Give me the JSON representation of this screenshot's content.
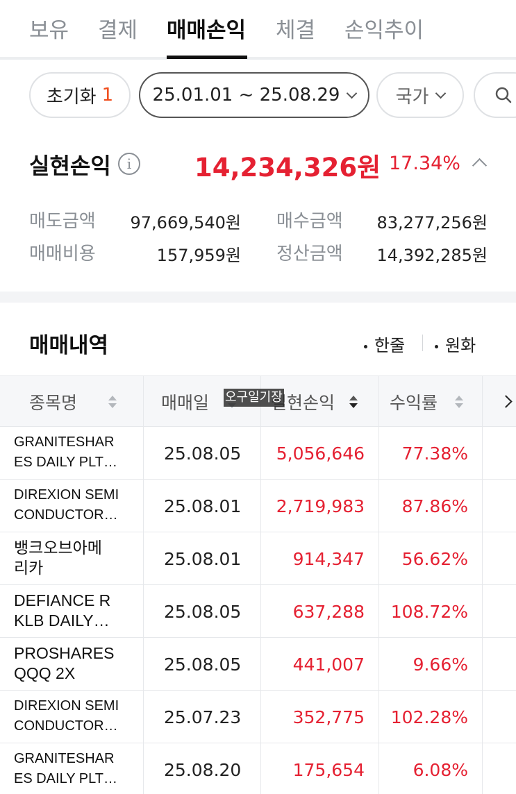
{
  "tabs": [
    "보유",
    "결제",
    "매매손익",
    "체결",
    "손익추이"
  ],
  "active_tab": "매매손익",
  "filters": {
    "reset_label": "초기화",
    "reset_count": "1",
    "date_range": "25.01.01 ~ 25.08.29",
    "country_label": "국가"
  },
  "summary": {
    "title": "실현손익",
    "info_glyph": "i",
    "amount": "14,234,326원",
    "rate": "17.34%",
    "sell_amount_label": "매도금액",
    "sell_amount": "97,669,540원",
    "buy_amount_label": "매수금액",
    "buy_amount": "83,277,256원",
    "fee_label": "매매비용",
    "fee": "157,959원",
    "settlement_label": "정산금액",
    "settlement": "14,392,285원"
  },
  "history": {
    "title": "매매내역",
    "toggle_one_line": "한줄",
    "toggle_krw": "원화",
    "columns": [
      "종목명",
      "매매일",
      "실현손익",
      "수익률"
    ],
    "watermark": "오구일기장",
    "rows": [
      {
        "name_line1": "GRANITESHAR",
        "name_line2": "ES DAILY PLT…",
        "date": "25.08.05",
        "pnl": "5,056,646",
        "rate": "77.38%"
      },
      {
        "name_line1": "DIREXION SEMI",
        "name_line2": "CONDUCTOR…",
        "date": "25.08.01",
        "pnl": "2,719,983",
        "rate": "87.86%"
      },
      {
        "name_line1": "뱅크오브아메",
        "name_line2": "리카",
        "date": "25.08.01",
        "pnl": "914,347",
        "rate": "56.62%"
      },
      {
        "name_line1": "DEFIANCE R",
        "name_line2": "KLB DAILY…",
        "date": "25.08.05",
        "pnl": "637,288",
        "rate": "108.72%"
      },
      {
        "name_line1": "PROSHARES",
        "name_line2": "QQQ 2X",
        "date": "25.08.05",
        "pnl": "441,007",
        "rate": "9.66%"
      },
      {
        "name_line1": "DIREXION SEMI",
        "name_line2": "CONDUCTOR…",
        "date": "25.07.23",
        "pnl": "352,775",
        "rate": "102.28%"
      },
      {
        "name_line1": "GRANITESHAR",
        "name_line2": "ES DAILY PLT…",
        "date": "25.08.20",
        "pnl": "175,654",
        "rate": "6.08%"
      }
    ]
  },
  "colors": {
    "profit": "#e52132",
    "accent_count": "#f04d1c",
    "muted": "#8a8f95"
  },
  "icons": {
    "search": "search-icon",
    "info": "info-icon",
    "collapse": "chevron-up-icon",
    "dropdown": "chevron-down-icon",
    "sort": "sort-icon",
    "next_columns": "chevron-right-icon"
  }
}
